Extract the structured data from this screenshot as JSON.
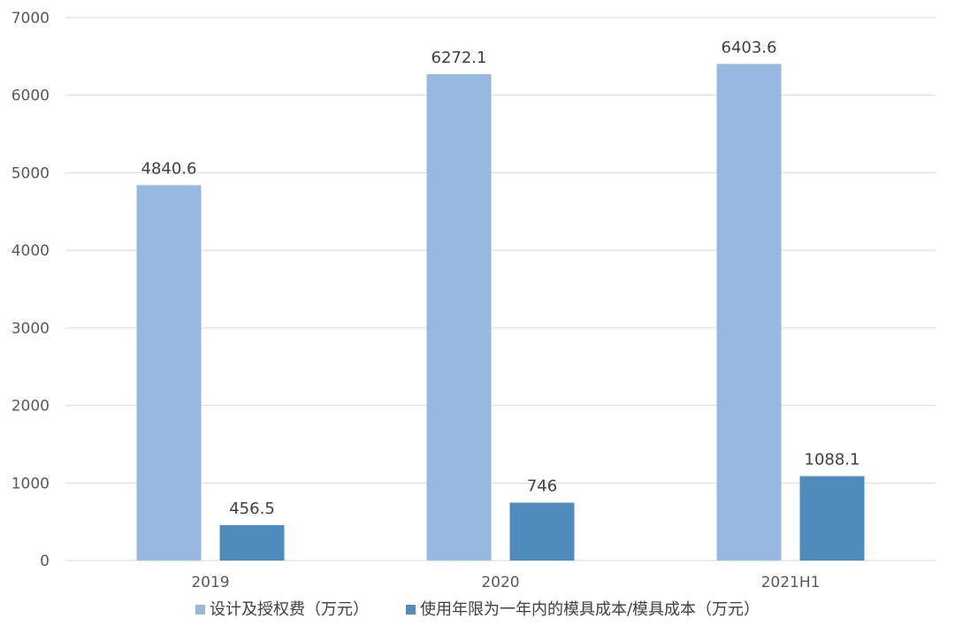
{
  "chart_data": {
    "type": "bar",
    "categories": [
      "2019",
      "2020",
      "2021H1"
    ],
    "series": [
      {
        "name": "设计及授权费（万元）",
        "values": [
          4840.6,
          6272.1,
          6403.6
        ],
        "labels": [
          "4840.6",
          "6272.1",
          "6403.6"
        ],
        "color": "#97b9e0"
      },
      {
        "name": "使用年限为一年内的模具成本/模具成本（万元）",
        "values": [
          456.5,
          746,
          1088.1
        ],
        "labels": [
          "456.5",
          "746",
          "1088.1"
        ],
        "color": "#4f8bbd"
      }
    ],
    "ylim": [
      0,
      7000
    ],
    "yticks": [
      "0",
      "1000",
      "2000",
      "3000",
      "4000",
      "5000",
      "6000",
      "7000"
    ],
    "grid": true,
    "legend_position": "bottom",
    "gridline_color": "#d9d9d9"
  }
}
